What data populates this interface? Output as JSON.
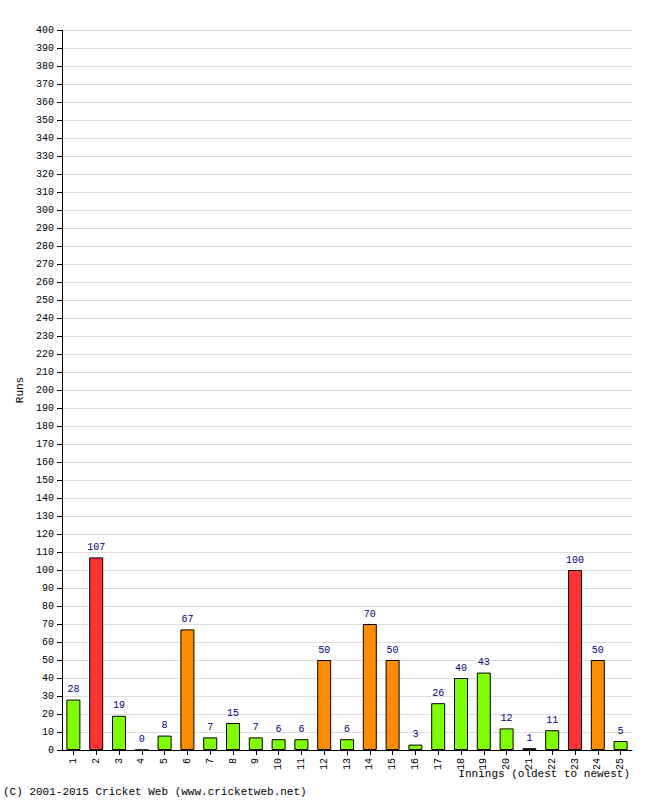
{
  "chart_data": {
    "type": "bar",
    "categories": [
      "1",
      "2",
      "3",
      "4",
      "5",
      "6",
      "7",
      "8",
      "9",
      "10",
      "11",
      "12",
      "13",
      "14",
      "15",
      "16",
      "17",
      "18",
      "19",
      "20",
      "21",
      "22",
      "23",
      "24",
      "25"
    ],
    "values": [
      28,
      107,
      19,
      0,
      8,
      67,
      7,
      15,
      7,
      6,
      6,
      50,
      6,
      70,
      50,
      3,
      26,
      40,
      43,
      12,
      1,
      11,
      100,
      50,
      5
    ],
    "colors": [
      "#80ff00",
      "#ff3333",
      "#80ff00",
      "#80ff00",
      "#80ff00",
      "#ff8c00",
      "#80ff00",
      "#80ff00",
      "#80ff00",
      "#80ff00",
      "#80ff00",
      "#ff8c00",
      "#80ff00",
      "#ff8c00",
      "#ff8c00",
      "#80ff00",
      "#80ff00",
      "#80ff00",
      "#80ff00",
      "#80ff00",
      "#80ff00",
      "#80ff00",
      "#ff3333",
      "#ff8c00",
      "#80ff00"
    ],
    "x_label": "Innings (oldest to newest)",
    "y_label": "Runs",
    "ylim": [
      0,
      400
    ],
    "yticks": [
      0,
      10,
      20,
      30,
      40,
      50,
      60,
      70,
      80,
      90,
      100,
      110,
      120,
      130,
      140,
      150,
      160,
      170,
      180,
      190,
      200,
      210,
      220,
      230,
      240,
      250,
      260,
      270,
      280,
      290,
      300,
      310,
      320,
      330,
      340,
      350,
      360,
      370,
      380,
      390,
      400
    ],
    "grid": true,
    "data_labels": true,
    "annotations": [
      "(C) 2001-2015 Cricket Web (www.cricketweb.net)"
    ]
  }
}
